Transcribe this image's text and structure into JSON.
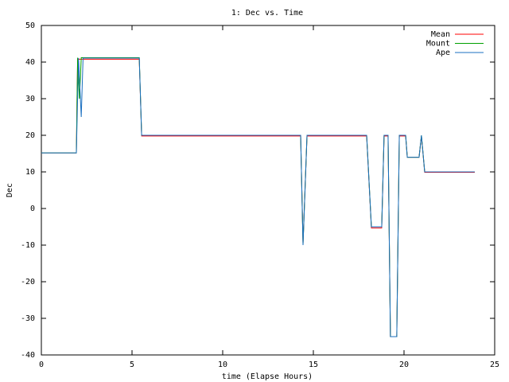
{
  "chart_data": {
    "type": "line",
    "title": "1: Dec vs. Time",
    "xlabel": "time (Elapse Hours)",
    "ylabel": "Dec",
    "xlim": [
      0,
      25
    ],
    "xticks": [
      0,
      5,
      10,
      15,
      20,
      25
    ],
    "ylim": [
      -40,
      50
    ],
    "yticks": [
      -40,
      -30,
      -20,
      -10,
      0,
      10,
      20,
      30,
      40,
      50
    ],
    "legend": "upper right",
    "series": [
      {
        "name": "Mean",
        "color": "#ff0000",
        "x": [
          0,
          1.93,
          2.0,
          2.15,
          2.3,
          5.4,
          5.53,
          14.3,
          14.43,
          14.65,
          17.94,
          18.2,
          18.77,
          18.9,
          19.12,
          19.25,
          19.6,
          19.74,
          20.09,
          20.18,
          20.83,
          20.96,
          21.14,
          23.9
        ],
        "values": [
          15.2,
          15.2,
          40.8,
          40.8,
          40.8,
          40.8,
          19.8,
          19.8,
          -9.5,
          19.8,
          19.8,
          -5.3,
          -5.3,
          19.8,
          19.8,
          -35,
          -35,
          19.8,
          19.8,
          14,
          14,
          19.8,
          9.9,
          9.9
        ]
      },
      {
        "name": "Mount",
        "color": "#00a000",
        "x": [
          0,
          1.93,
          2.0,
          2.1,
          2.2,
          2.3,
          5.4,
          5.53,
          14.3,
          14.43,
          14.65,
          17.94,
          18.2,
          18.77,
          18.9,
          19.12,
          19.25,
          19.6,
          19.74,
          20.09,
          20.18,
          20.83,
          20.96,
          21.14,
          23.9
        ],
        "values": [
          15.2,
          15.2,
          41.2,
          30,
          41.2,
          41.2,
          41.2,
          20,
          20,
          -9.8,
          20,
          20,
          -5,
          -5,
          20,
          20,
          -35,
          -35,
          20,
          20,
          14,
          14,
          20,
          10,
          10
        ]
      },
      {
        "name": "Ape",
        "color": "#1a6fc0",
        "x": [
          0,
          1.93,
          2.05,
          2.2,
          2.3,
          5.4,
          5.53,
          14.3,
          14.43,
          14.65,
          17.94,
          18.2,
          18.77,
          18.9,
          19.12,
          19.25,
          19.6,
          19.74,
          20.09,
          20.18,
          20.83,
          20.96,
          21.14,
          23.9
        ],
        "values": [
          15.2,
          15.2,
          41.1,
          25,
          41.1,
          41.1,
          20,
          20,
          -10,
          20,
          20,
          -5,
          -5,
          20,
          20,
          -35,
          -35,
          20,
          20,
          14,
          14,
          20,
          10,
          10
        ]
      }
    ]
  }
}
